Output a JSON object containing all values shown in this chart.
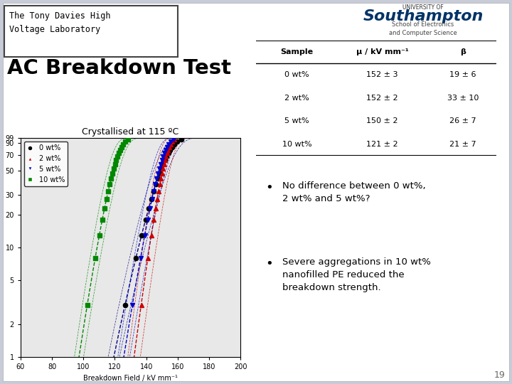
{
  "title": "AC Breakdown Test",
  "subtitle": "Crystallised at 115 ºC",
  "page_num": "19",
  "xlabel": "Breakdown Field / kV mm⁻¹",
  "xlim": [
    60,
    200
  ],
  "yticks": [
    1,
    2,
    5,
    10,
    20,
    30,
    50,
    70,
    90,
    99
  ],
  "xticks": [
    60,
    80,
    100,
    120,
    140,
    160,
    180,
    200
  ],
  "series": [
    {
      "label": "0 wt%",
      "color": "#000000",
      "marker": "o",
      "fit_color": "#000088",
      "mean": 152,
      "shape": 19
    },
    {
      "label": "2 wt%",
      "color": "#cc0000",
      "marker": "^",
      "fit_color": "#cc0000",
      "mean": 152,
      "shape": 33
    },
    {
      "label": "5 wt%",
      "color": "#0000cc",
      "marker": "v",
      "fit_color": "#0000cc",
      "mean": 150,
      "shape": 26
    },
    {
      "label": "10 wt%",
      "color": "#008800",
      "marker": "s",
      "fit_color": "#008800",
      "mean": 121,
      "shape": 21
    }
  ],
  "table_headers": [
    "Sample",
    "μ / kV mm⁻¹",
    "β"
  ],
  "table_rows": [
    [
      "0 wt%",
      "152 ± 3",
      "19 ± 6"
    ],
    [
      "2 wt%",
      "152 ± 2",
      "33 ± 10"
    ],
    [
      "5 wt%",
      "150 ± 2",
      "26 ± 7"
    ],
    [
      "10 wt%",
      "121 ± 2",
      "21 ± 7"
    ]
  ],
  "bullet1": "No difference between 0 wt%,\n2 wt% and 5 wt%?",
  "bullet2": "Severe aggregations in 10 wt%\nnanofilled PE reduced the\nbreakdown strength.",
  "plot_bg": "#e8e8e8",
  "slide_bg": "#c8ccd8"
}
